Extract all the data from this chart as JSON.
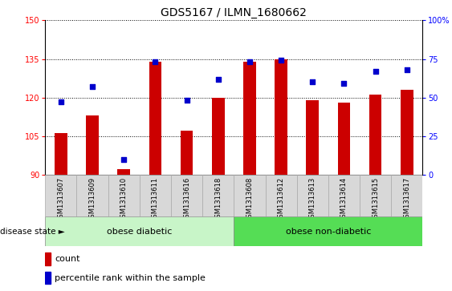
{
  "title": "GDS5167 / ILMN_1680662",
  "samples": [
    "GSM1313607",
    "GSM1313609",
    "GSM1313610",
    "GSM1313611",
    "GSM1313616",
    "GSM1313618",
    "GSM1313608",
    "GSM1313612",
    "GSM1313613",
    "GSM1313614",
    "GSM1313615",
    "GSM1313617"
  ],
  "counts": [
    106,
    113,
    92,
    134,
    107,
    120,
    134,
    135,
    119,
    118,
    121,
    123
  ],
  "percentiles": [
    47,
    57,
    10,
    73,
    48,
    62,
    73,
    74,
    60,
    59,
    67,
    68
  ],
  "bar_color": "#cc0000",
  "dot_color": "#0000cc",
  "ylim_left": [
    90,
    150
  ],
  "ylim_right": [
    0,
    100
  ],
  "yticks_left": [
    90,
    105,
    120,
    135,
    150
  ],
  "yticks_right": [
    0,
    25,
    50,
    75,
    100
  ],
  "ytick_labels_right": [
    "0",
    "25",
    "50",
    "75",
    "100%"
  ],
  "group1_label": "obese diabetic",
  "group2_label": "obese non-diabetic",
  "group1_count": 6,
  "group2_count": 6,
  "group1_color": "#c8f5c8",
  "group2_color": "#55dd55",
  "disease_state_label": "disease state",
  "legend_count_label": "count",
  "legend_percentile_label": "percentile rank within the sample",
  "title_fontsize": 10,
  "tick_fontsize": 7,
  "label_fontsize": 7.5,
  "bar_width": 0.4
}
